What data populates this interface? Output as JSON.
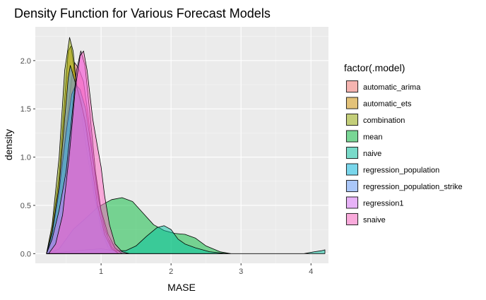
{
  "chart_data": {
    "type": "area",
    "title": "Density Function for Various Forecast Models",
    "xlabel": "MASE",
    "ylabel": "density",
    "xlim": [
      0.06,
      4.25
    ],
    "ylim": [
      -0.1,
      2.35
    ],
    "x_ticks": [
      1,
      2,
      3,
      4
    ],
    "x_tick_labels": [
      "1",
      "2",
      "3",
      "4"
    ],
    "y_ticks": [
      0.0,
      0.5,
      1.0,
      1.5,
      2.0
    ],
    "y_tick_labels": [
      "0.0",
      "0.5",
      "1.0",
      "1.5",
      "2.0"
    ],
    "grid": true,
    "legend_position": "right",
    "legend_title": "factor(.model)",
    "fill_opacity": 0.5,
    "series": [
      {
        "name": "automatic_arima",
        "color": "#F8766D",
        "points": [
          [
            0.22,
            0.0
          ],
          [
            0.3,
            0.22
          ],
          [
            0.4,
            0.62
          ],
          [
            0.5,
            1.3
          ],
          [
            0.58,
            1.82
          ],
          [
            0.62,
            1.98
          ],
          [
            0.68,
            1.92
          ],
          [
            0.75,
            1.78
          ],
          [
            0.82,
            1.4
          ],
          [
            0.9,
            0.9
          ],
          [
            1.0,
            0.42
          ],
          [
            1.1,
            0.16
          ],
          [
            1.2,
            0.05
          ],
          [
            1.3,
            0.0
          ]
        ]
      },
      {
        "name": "automatic_ets",
        "color": "#D39200",
        "points": [
          [
            0.22,
            0.0
          ],
          [
            0.3,
            0.25
          ],
          [
            0.4,
            0.8
          ],
          [
            0.48,
            1.6
          ],
          [
            0.53,
            2.1
          ],
          [
            0.57,
            2.15
          ],
          [
            0.62,
            1.9
          ],
          [
            0.7,
            1.55
          ],
          [
            0.8,
            1.05
          ],
          [
            0.9,
            0.6
          ],
          [
            1.0,
            0.28
          ],
          [
            1.1,
            0.08
          ],
          [
            1.2,
            0.0
          ]
        ]
      },
      {
        "name": "combination",
        "color": "#93AA00",
        "points": [
          [
            0.22,
            0.0
          ],
          [
            0.3,
            0.3
          ],
          [
            0.4,
            1.0
          ],
          [
            0.48,
            1.9
          ],
          [
            0.55,
            2.24
          ],
          [
            0.6,
            2.1
          ],
          [
            0.65,
            1.75
          ],
          [
            0.72,
            1.55
          ],
          [
            0.8,
            1.2
          ],
          [
            0.9,
            0.65
          ],
          [
            1.0,
            0.25
          ],
          [
            1.1,
            0.06
          ],
          [
            1.2,
            0.0
          ]
        ]
      },
      {
        "name": "mean",
        "color": "#00BA38",
        "points": [
          [
            0.25,
            0.0
          ],
          [
            0.4,
            0.05
          ],
          [
            0.6,
            0.25
          ],
          [
            0.8,
            0.38
          ],
          [
            0.95,
            0.48
          ],
          [
            1.05,
            0.52
          ],
          [
            1.15,
            0.56
          ],
          [
            1.3,
            0.58
          ],
          [
            1.45,
            0.54
          ],
          [
            1.6,
            0.42
          ],
          [
            1.75,
            0.3
          ],
          [
            1.9,
            0.24
          ],
          [
            2.05,
            0.21
          ],
          [
            2.2,
            0.2
          ],
          [
            2.35,
            0.16
          ],
          [
            2.5,
            0.08
          ],
          [
            2.7,
            0.02
          ],
          [
            2.85,
            0.0
          ]
        ]
      },
      {
        "name": "naive",
        "color": "#00C19F",
        "points": [
          [
            0.25,
            0.0
          ],
          [
            0.5,
            0.02
          ],
          [
            0.8,
            0.04
          ],
          [
            1.0,
            0.05
          ],
          [
            1.2,
            0.03
          ],
          [
            1.35,
            0.03
          ],
          [
            1.5,
            0.08
          ],
          [
            1.65,
            0.18
          ],
          [
            1.8,
            0.27
          ],
          [
            1.9,
            0.29
          ],
          [
            2.0,
            0.25
          ],
          [
            2.1,
            0.15
          ],
          [
            2.2,
            0.1
          ],
          [
            2.35,
            0.06
          ],
          [
            2.55,
            0.02
          ],
          [
            2.8,
            0.0
          ],
          [
            3.4,
            0.0
          ],
          [
            3.9,
            0.0
          ],
          [
            4.05,
            0.02
          ],
          [
            4.15,
            0.03
          ],
          [
            4.2,
            0.04
          ]
        ]
      },
      {
        "name": "regression_population",
        "color": "#00B9E3",
        "points": [
          [
            0.22,
            0.0
          ],
          [
            0.3,
            0.2
          ],
          [
            0.4,
            0.65
          ],
          [
            0.5,
            1.25
          ],
          [
            0.58,
            1.65
          ],
          [
            0.64,
            1.75
          ],
          [
            0.7,
            1.7
          ],
          [
            0.78,
            1.5
          ],
          [
            0.86,
            1.1
          ],
          [
            0.95,
            0.6
          ],
          [
            1.05,
            0.25
          ],
          [
            1.15,
            0.07
          ],
          [
            1.25,
            0.0
          ]
        ]
      },
      {
        "name": "regression_population_strike",
        "color": "#619CFF",
        "points": [
          [
            0.22,
            0.0
          ],
          [
            0.3,
            0.22
          ],
          [
            0.4,
            0.7
          ],
          [
            0.48,
            1.4
          ],
          [
            0.53,
            1.82
          ],
          [
            0.56,
            1.95
          ],
          [
            0.62,
            1.8
          ],
          [
            0.7,
            1.6
          ],
          [
            0.78,
            1.35
          ],
          [
            0.86,
            0.95
          ],
          [
            0.95,
            0.5
          ],
          [
            1.05,
            0.2
          ],
          [
            1.15,
            0.05
          ],
          [
            1.25,
            0.0
          ]
        ]
      },
      {
        "name": "regression1",
        "color": "#DB72FB",
        "points": [
          [
            0.22,
            0.0
          ],
          [
            0.3,
            0.15
          ],
          [
            0.4,
            0.45
          ],
          [
            0.5,
            0.85
          ],
          [
            0.58,
            1.4
          ],
          [
            0.65,
            1.9
          ],
          [
            0.71,
            2.1
          ],
          [
            0.77,
            1.95
          ],
          [
            0.84,
            1.45
          ],
          [
            0.92,
            0.85
          ],
          [
            1.0,
            0.45
          ],
          [
            1.1,
            0.2
          ],
          [
            1.2,
            0.06
          ],
          [
            1.3,
            0.0
          ]
        ]
      },
      {
        "name": "snaive",
        "color": "#FF61C3",
        "points": [
          [
            0.25,
            0.0
          ],
          [
            0.35,
            0.1
          ],
          [
            0.45,
            0.4
          ],
          [
            0.55,
            1.05
          ],
          [
            0.63,
            1.7
          ],
          [
            0.7,
            2.05
          ],
          [
            0.75,
            2.1
          ],
          [
            0.8,
            1.9
          ],
          [
            0.88,
            1.4
          ],
          [
            0.95,
            1.1
          ],
          [
            1.0,
            0.9
          ],
          [
            1.05,
            0.6
          ],
          [
            1.12,
            0.3
          ],
          [
            1.2,
            0.1
          ],
          [
            1.3,
            0.02
          ],
          [
            1.4,
            0.0
          ]
        ]
      }
    ]
  }
}
